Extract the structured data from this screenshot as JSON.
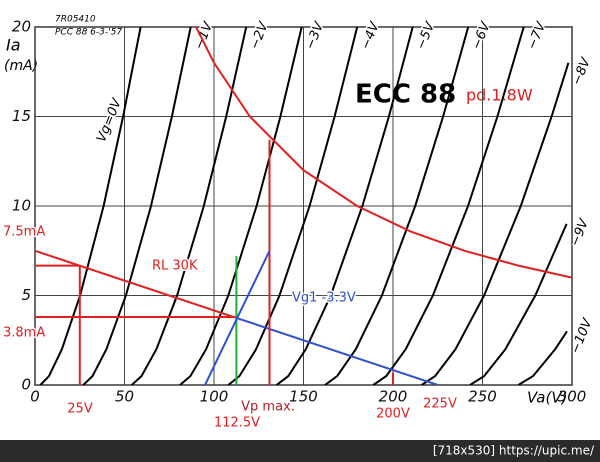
{
  "chart_data": {
    "type": "line",
    "title": "ECC 88",
    "subtitle": "pd.1.8W",
    "subtitle_color": "#e02020",
    "ylabel": "Ia",
    "yunit": "(mA)",
    "xlabel": "Va(V)",
    "stamp": [
      "7R05410",
      "PCC 88  6-3-'57"
    ],
    "xlim": [
      0,
      300
    ],
    "ylim": [
      0,
      20
    ],
    "xticks": [
      0,
      50,
      100,
      150,
      200,
      250,
      300
    ],
    "yticks": [
      0,
      5,
      10,
      15,
      20
    ],
    "grid": true,
    "series": [
      {
        "name": "Vg=0V",
        "color": "#000000",
        "x": [
          3,
          7.8,
          15,
          25.2,
          38.3,
          49.2,
          59
        ],
        "values": [
          0,
          0.5,
          2,
          5,
          10,
          15,
          20
        ]
      },
      {
        "name": "−1V",
        "color": "#000000",
        "x": [
          27,
          32.1,
          39.9,
          50.8,
          64.8,
          76.5,
          87
        ],
        "values": [
          0,
          0.5,
          2,
          5,
          10,
          15,
          20
        ]
      },
      {
        "name": "−2V",
        "color": "#000000",
        "x": [
          54,
          59.5,
          67.8,
          79.4,
          94.3,
          106.8,
          118
        ],
        "values": [
          0,
          0.5,
          2,
          5,
          10,
          15,
          20
        ]
      },
      {
        "name": "−3V",
        "color": "#000000",
        "x": [
          81,
          86.8,
          95.6,
          108,
          123.8,
          137.1,
          149
        ],
        "values": [
          0,
          0.5,
          2,
          5,
          10,
          15,
          20
        ]
      },
      {
        "name": "−4V",
        "color": "#000000",
        "x": [
          108,
          114.2,
          123.5,
          136.6,
          153.4,
          167.4,
          180
        ],
        "values": [
          0,
          0.5,
          2,
          5,
          10,
          15,
          20
        ]
      },
      {
        "name": "−5V",
        "color": "#000000",
        "x": [
          135,
          141.5,
          151.3,
          165.2,
          182.9,
          197.7,
          211
        ],
        "values": [
          0,
          0.5,
          2,
          5,
          10,
          15,
          20
        ]
      },
      {
        "name": "−6V",
        "color": "#000000",
        "x": [
          162,
          168.8,
          179.2,
          193.8,
          212.4,
          228,
          242
        ],
        "values": [
          0,
          0.5,
          2,
          5,
          10,
          15,
          20
        ]
      },
      {
        "name": "−7V",
        "color": "#000000",
        "x": [
          189,
          196.2,
          207.1,
          222.3,
          241.9,
          258.3,
          273
        ],
        "values": [
          0,
          0.5,
          2,
          5,
          10,
          15,
          20
        ]
      },
      {
        "name": "−8V",
        "color": "#000000",
        "x": [
          216,
          223.5,
          234.9,
          250.9,
          271.4,
          288.6,
          298
        ],
        "values": [
          0,
          0.5,
          2,
          5,
          10,
          15,
          18
        ]
      },
      {
        "name": "−9V",
        "color": "#000000",
        "x": [
          243,
          250.9,
          262.8,
          279.5,
          297
        ],
        "values": [
          0,
          0.5,
          2,
          5,
          9
        ]
      },
      {
        "name": "−10V",
        "color": "#000000",
        "x": [
          270,
          278.2,
          290.6,
          297.2
        ],
        "values": [
          0,
          0.5,
          2,
          3
        ]
      }
    ],
    "lines": [
      {
        "color": "#e02020",
        "x": [
          90,
          100,
          120,
          150,
          180,
          210,
          240,
          270,
          300
        ],
        "values": [
          20,
          18,
          15,
          12,
          10,
          8.57,
          7.5,
          6.67,
          6
        ]
      },
      {
        "color": "#e02020",
        "x": [
          0,
          112.5
        ],
        "values": [
          7.5,
          3.75
        ]
      },
      {
        "color": "#3050d0",
        "x": [
          112.5,
          225
        ],
        "values": [
          3.75,
          0
        ]
      },
      {
        "color": "#e02020",
        "x": [
          0,
          112.5
        ],
        "values": [
          3.8,
          3.8
        ]
      },
      {
        "color": "#e02020",
        "x": [
          0,
          25
        ],
        "values": [
          6.67,
          6.67
        ]
      },
      {
        "color": "#e02020",
        "x": [
          25,
          25
        ],
        "values": [
          6.67,
          0
        ]
      },
      {
        "color": "#20b030",
        "x": [
          112.5,
          112.5
        ],
        "values": [
          7.2,
          0
        ]
      },
      {
        "color": "#e02020",
        "x": [
          131,
          131
        ],
        "values": [
          13.7,
          0
        ]
      },
      {
        "color": "#e02020",
        "x": [
          200,
          200
        ],
        "values": [
          0.7,
          0
        ]
      },
      {
        "color": "#3050d0",
        "x": [
          95,
          131
        ],
        "values": [
          0,
          7.5
        ]
      }
    ],
    "annotations": [
      {
        "text": "7.5mA",
        "color": "#e02020"
      },
      {
        "text": "3.8mA",
        "color": "#e02020"
      },
      {
        "text": "RL 30K",
        "color": "#e02020"
      },
      {
        "text": "Vg1 -3.3V",
        "color": "#3050d0"
      },
      {
        "text": "25V",
        "color": "#e02020"
      },
      {
        "text": "Vp max.",
        "color": "#b02020"
      },
      {
        "text": "112.5V",
        "color": "#e02020"
      },
      {
        "text": "200V",
        "color": "#e02020"
      },
      {
        "text": "225V",
        "color": "#e02020"
      }
    ]
  },
  "footer": "[718x530] https://upic.me/"
}
